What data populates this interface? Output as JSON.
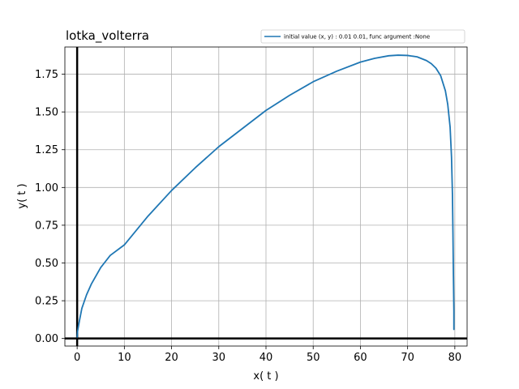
{
  "chart_data": {
    "type": "line",
    "title": "lotka_volterra",
    "xlabel": "x( t )",
    "ylabel": "y( t )",
    "xlim": [
      -2.6,
      82.6
    ],
    "ylim": [
      -0.05,
      1.93
    ],
    "xticks": [
      0,
      10,
      20,
      30,
      40,
      50,
      60,
      70,
      80
    ],
    "xtick_labels": [
      "0",
      "10",
      "20",
      "30",
      "40",
      "50",
      "60",
      "70",
      "80"
    ],
    "yticks": [
      0.0,
      0.25,
      0.5,
      0.75,
      1.0,
      1.25,
      1.5,
      1.75
    ],
    "ytick_labels": [
      "0.00",
      "0.25",
      "0.50",
      "0.75",
      "1.00",
      "1.25",
      "1.50",
      "1.75"
    ],
    "grid": true,
    "zero_lines": true,
    "legend_position": "top-right",
    "series": [
      {
        "name": "initial value (x, y) :  0.01 0.01, func argument :None",
        "color": "#1f77b4",
        "x": [
          0.0,
          0.1,
          0.5,
          1,
          2,
          3,
          5,
          7,
          10,
          15,
          20,
          25,
          30,
          35,
          40,
          45,
          50,
          55,
          60,
          63,
          66,
          68,
          70,
          72,
          74,
          75,
          76,
          77,
          78,
          78.5,
          79.0,
          79.3,
          79.5,
          79.6,
          79.7,
          79.8,
          79.8
        ],
        "y": [
          0.01,
          0.05,
          0.12,
          0.2,
          0.29,
          0.36,
          0.47,
          0.55,
          0.62,
          0.81,
          0.98,
          1.13,
          1.27,
          1.39,
          1.51,
          1.61,
          1.7,
          1.77,
          1.83,
          1.855,
          1.872,
          1.876,
          1.874,
          1.865,
          1.84,
          1.82,
          1.79,
          1.74,
          1.64,
          1.55,
          1.4,
          1.2,
          0.95,
          0.7,
          0.42,
          0.18,
          0.06
        ]
      }
    ]
  }
}
